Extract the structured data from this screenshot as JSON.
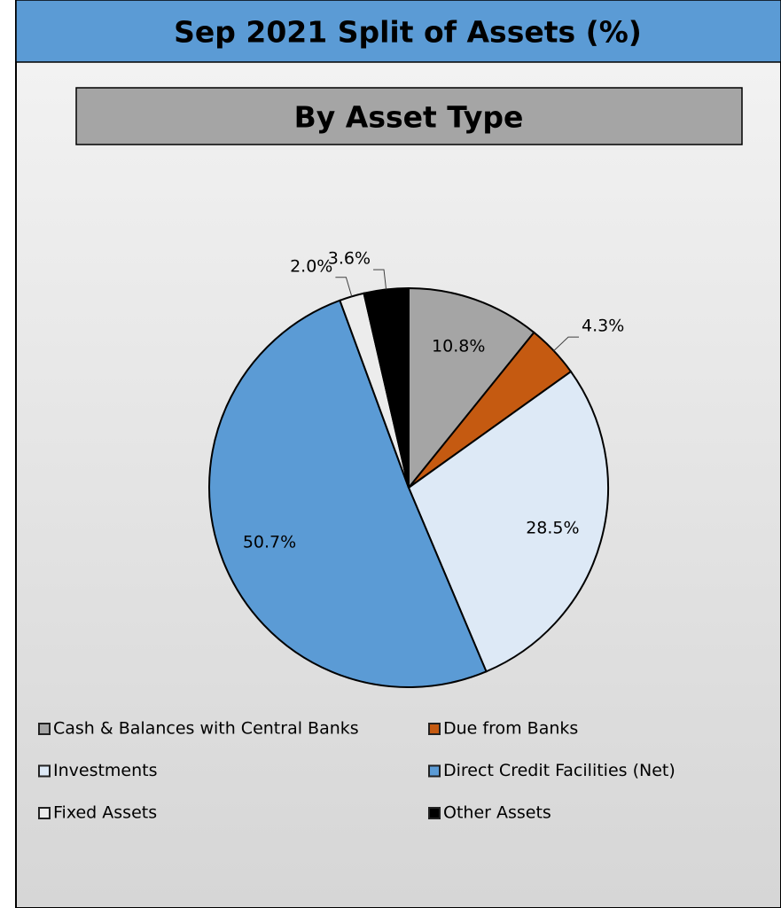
{
  "chart_data": {
    "type": "pie",
    "title": "Sep 2021 Split of Assets (%)",
    "subtitle": "By Asset Type",
    "categories": [
      "Cash & Balances with Central Banks",
      "Due from Banks",
      "Investments",
      "Direct Credit Facilities (Net)",
      "Fixed Assets",
      "Other Assets"
    ],
    "values": [
      10.8,
      4.3,
      28.5,
      50.7,
      2.0,
      3.6
    ],
    "value_labels": [
      "10.8%",
      "4.3%",
      "28.5%",
      "50.7%",
      "2.0%",
      "3.6%"
    ],
    "colors": [
      "#a5a5a5",
      "#c55a11",
      "#dde9f6",
      "#5b9bd5",
      "#ececec",
      "#000000"
    ]
  }
}
